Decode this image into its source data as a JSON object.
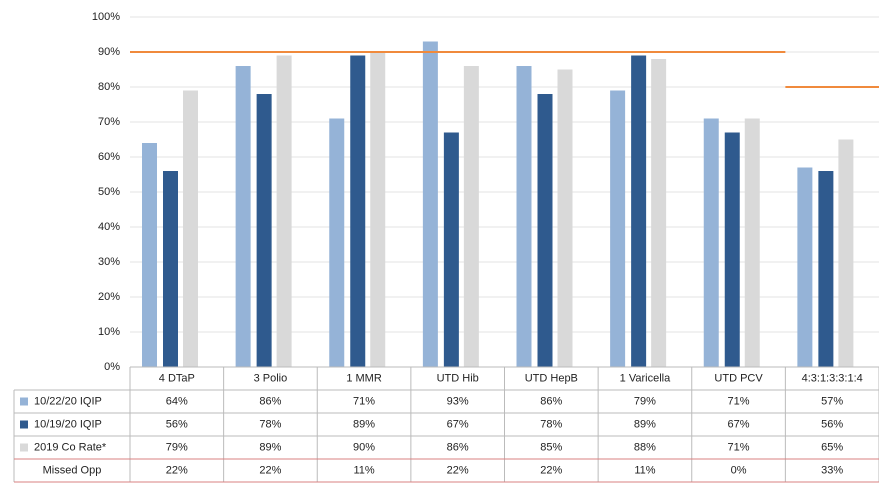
{
  "chart_data": {
    "type": "bar",
    "categories": [
      "4 DTaP",
      "3 Polio",
      "1 MMR",
      "UTD Hib",
      "UTD HepB",
      "1 Varicella",
      "UTD PCV",
      "4:3:1:3:3:1:4"
    ],
    "series": [
      {
        "name": "10/22/20 IQIP",
        "color": "#95b3d7",
        "values": [
          64,
          86,
          71,
          93,
          86,
          79,
          71,
          57
        ],
        "value_labels": [
          "64%",
          "86%",
          "71%",
          "93%",
          "86%",
          "79%",
          "71%",
          "57%"
        ]
      },
      {
        "name": "10/19/20 IQIP",
        "color": "#2f5a8e",
        "values": [
          56,
          78,
          89,
          67,
          78,
          89,
          67,
          56
        ],
        "value_labels": [
          "56%",
          "78%",
          "89%",
          "67%",
          "78%",
          "89%",
          "67%",
          "56%"
        ]
      },
      {
        "name": "2019 Co Rate*",
        "color": "#d9d9d9",
        "values": [
          79,
          89,
          90,
          86,
          85,
          88,
          71,
          65
        ],
        "value_labels": [
          "79%",
          "89%",
          "90%",
          "86%",
          "85%",
          "88%",
          "71%",
          "65%"
        ]
      }
    ],
    "table_extra": [
      {
        "name": "Missed Opp",
        "values": [
          22,
          22,
          11,
          22,
          22,
          11,
          0,
          33
        ],
        "value_labels": [
          "22%",
          "22%",
          "11%",
          "22%",
          "22%",
          "11%",
          "0%",
          "33%"
        ]
      }
    ],
    "target": {
      "color": "#f08a3c",
      "values": [
        90,
        90,
        90,
        90,
        90,
        90,
        90,
        80
      ]
    },
    "ylim": [
      0,
      100
    ],
    "yticks": [
      {
        "value": 0,
        "label": "0%"
      },
      {
        "value": 10,
        "label": "10%"
      },
      {
        "value": 20,
        "label": "20%"
      },
      {
        "value": 30,
        "label": "30%"
      },
      {
        "value": 40,
        "label": "40%"
      },
      {
        "value": 50,
        "label": "50%"
      },
      {
        "value": 60,
        "label": "60%"
      },
      {
        "value": 70,
        "label": "70%"
      },
      {
        "value": 80,
        "label": "80%"
      },
      {
        "value": 90,
        "label": "90%"
      },
      {
        "value": 100,
        "label": "100%"
      }
    ],
    "grid": true
  }
}
